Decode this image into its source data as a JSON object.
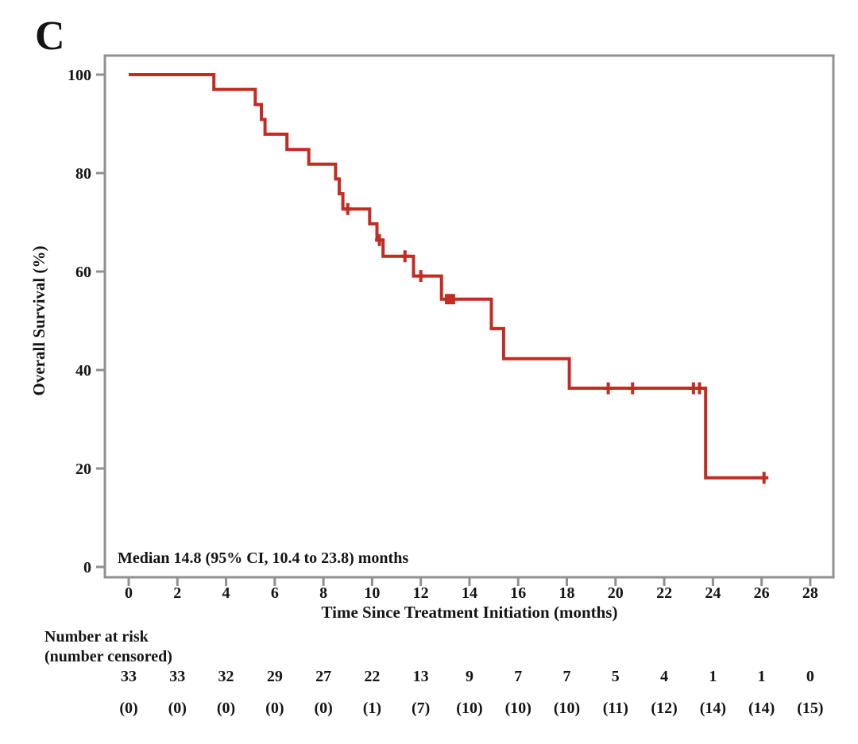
{
  "panel_label": "C",
  "colors": {
    "curve": "#C42B22",
    "axis": "#909090",
    "text": "#141414",
    "background": "#FFFFFF"
  },
  "chart_data": {
    "type": "line",
    "subtype": "kaplan-meier-step",
    "title": "",
    "xlabel": "Time Since Treatment Initiation (months)",
    "ylabel": "Overall Survival (%)",
    "xlim": [
      0,
      28.9
    ],
    "ylim": [
      -2,
      104
    ],
    "x_ticks": [
      0,
      2,
      4,
      6,
      8,
      10,
      12,
      14,
      16,
      18,
      20,
      22,
      24,
      26,
      28
    ],
    "y_ticks": [
      0,
      20,
      40,
      60,
      80,
      100
    ],
    "grid": false,
    "legend": "none",
    "annotation": "Median 14.8 (95% CI, 10.4 to 23.8) months",
    "series": [
      {
        "name": "Overall Survival",
        "color": "#C42B22",
        "steps": [
          [
            0,
            100
          ],
          [
            3.5,
            97.0
          ],
          [
            5.2,
            93.9
          ],
          [
            5.45,
            90.9
          ],
          [
            5.6,
            87.9
          ],
          [
            6.5,
            84.8
          ],
          [
            7.4,
            81.8
          ],
          [
            8.5,
            78.8
          ],
          [
            8.65,
            75.8
          ],
          [
            8.8,
            72.7
          ],
          [
            9.9,
            69.7
          ],
          [
            10.2,
            66.4
          ],
          [
            10.45,
            63.1
          ],
          [
            11.7,
            59.1
          ],
          [
            12.85,
            54.4
          ],
          [
            14.9,
            48.4
          ],
          [
            15.4,
            42.3
          ],
          [
            18.1,
            36.3
          ],
          [
            23.7,
            18.1
          ]
        ],
        "end_time": 26.15,
        "censor_marks": [
          [
            9.0,
            72.7
          ],
          [
            10.3,
            66.4
          ],
          [
            11.35,
            63.1
          ],
          [
            12.0,
            59.1
          ],
          [
            19.7,
            36.3
          ],
          [
            20.7,
            36.3
          ],
          [
            23.2,
            36.3
          ],
          [
            23.45,
            36.3
          ],
          [
            26.1,
            18.1
          ]
        ],
        "censor_squares": [
          [
            13.2,
            54.4
          ]
        ]
      }
    ]
  },
  "risk_table": {
    "header_line1": "Number at risk",
    "header_line2": "(number censored)",
    "times": [
      0,
      2,
      4,
      6,
      8,
      10,
      12,
      14,
      16,
      18,
      20,
      22,
      24,
      26,
      28
    ],
    "at_risk": [
      "33",
      "33",
      "32",
      "29",
      "27",
      "22",
      "13",
      "9",
      "7",
      "7",
      "5",
      "4",
      "1",
      "1",
      "0"
    ],
    "censored": [
      "(0)",
      "(0)",
      "(0)",
      "(0)",
      "(0)",
      "(1)",
      "(7)",
      "(10)",
      "(10)",
      "(10)",
      "(11)",
      "(12)",
      "(14)",
      "(14)",
      "(15)"
    ]
  }
}
